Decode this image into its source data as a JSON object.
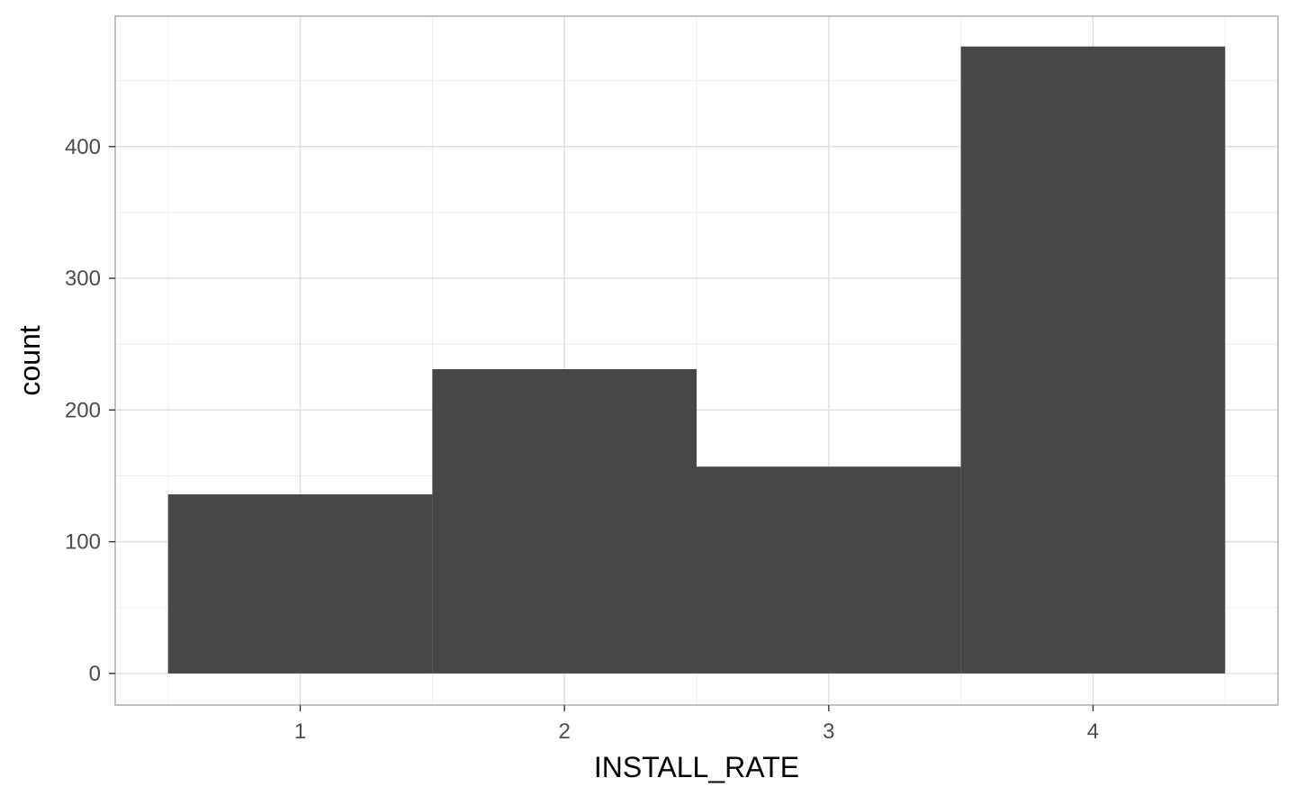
{
  "chart_data": {
    "type": "bar",
    "title": "",
    "xlabel": "INSTALL_RATE",
    "ylabel": "count",
    "categories": [
      "1",
      "2",
      "3",
      "4"
    ],
    "x": [
      1,
      2,
      3,
      4
    ],
    "values": [
      136,
      231,
      157,
      476
    ],
    "xlim": [
      0.3,
      4.7
    ],
    "ylim": [
      -24,
      499
    ],
    "x_ticks": [
      1,
      2,
      3,
      4
    ],
    "y_ticks": [
      0,
      100,
      200,
      300,
      400
    ],
    "y_minor_ticks": [
      50,
      150,
      250,
      350,
      450
    ],
    "x_minor_ticks": [
      0.5,
      1.5,
      2.5,
      3.5,
      4.5
    ],
    "bar_width": 1,
    "grid": true,
    "legend": "none",
    "colors": {
      "bar": "#474747",
      "grid_major": "#dedede",
      "grid_minor": "#ededed",
      "panel_border": "#b3b3b3",
      "tick_text": "#4d4d4d"
    }
  }
}
